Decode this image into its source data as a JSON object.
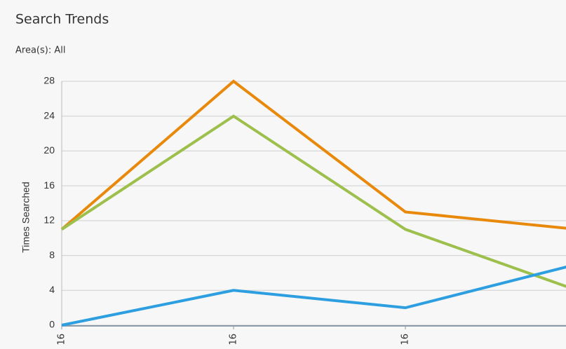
{
  "chart_data": {
    "type": "line",
    "title": "Search Trends",
    "subtitle": "Area(s): All",
    "y_label": "Times Searched",
    "categories": [
      "16",
      "16",
      "16",
      null
    ],
    "series": [
      {
        "name": null,
        "color": "#e8890c",
        "values": [
          11,
          28,
          13,
          11
        ]
      },
      {
        "name": null,
        "color": "#9dbf4c",
        "values": [
          11,
          24,
          11,
          4
        ]
      },
      {
        "name": null,
        "color": "#2d9fe0",
        "values": [
          0,
          4,
          2,
          7
        ]
      }
    ],
    "ylim": [
      0,
      28
    ],
    "yticks": [
      0,
      4,
      8,
      12,
      16,
      20,
      24,
      28
    ],
    "grid": true
  }
}
